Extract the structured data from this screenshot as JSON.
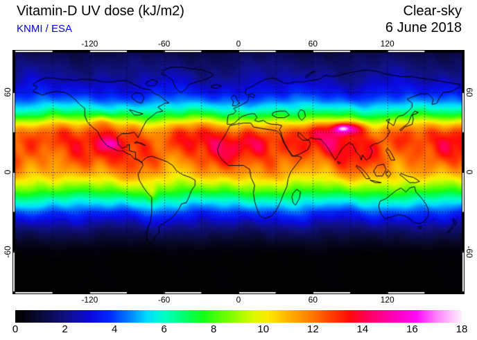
{
  "header": {
    "title": "Vitamin-D UV dose (kJ/m2)",
    "source": "KNMI / ESA",
    "source_color": "#0000ee",
    "condition": "Clear-sky",
    "date": "6 June 2018"
  },
  "chart_data": {
    "type": "heatmap",
    "projection": "equirectangular",
    "title": "Vitamin-D UV dose (kJ/m2)",
    "condition": "Clear-sky",
    "date": "6 June 2018",
    "units": "kJ/m2",
    "lon_range": [
      -180,
      180
    ],
    "lat_range": [
      -90,
      90
    ],
    "lon_ticks": [
      -120,
      -60,
      0,
      60,
      120
    ],
    "lat_ticks": [
      60,
      0,
      -60
    ],
    "grid_spacing_deg": 30,
    "grid_style": "dotted",
    "colorbar": {
      "min": 0,
      "max": 18,
      "ticks": [
        0,
        2,
        4,
        6,
        8,
        10,
        12,
        14,
        16,
        18
      ]
    },
    "palette_stops": [
      [
        0,
        "#000000"
      ],
      [
        0.8,
        "#08082a"
      ],
      [
        2,
        "#101082"
      ],
      [
        3,
        "#0a0adc"
      ],
      [
        3.8,
        "#0028ff"
      ],
      [
        4.6,
        "#0082ff"
      ],
      [
        5.3,
        "#00dcff"
      ],
      [
        6,
        "#00ffc8"
      ],
      [
        6.8,
        "#00ff6e"
      ],
      [
        7.6,
        "#14ff14"
      ],
      [
        8.6,
        "#78ff00"
      ],
      [
        9.6,
        "#dcfa00"
      ],
      [
        10.2,
        "#ffeb00"
      ],
      [
        11,
        "#ffb400"
      ],
      [
        12,
        "#ff7800"
      ],
      [
        12.8,
        "#ff3c00"
      ],
      [
        13.5,
        "#ff0a0a"
      ],
      [
        14.2,
        "#ff005a"
      ],
      [
        15.2,
        "#ff00b4"
      ],
      [
        16.2,
        "#ff0afa"
      ],
      [
        17,
        "#ff82fc"
      ],
      [
        18,
        "#fff0fe"
      ]
    ],
    "zonal_profile": {
      "lat": [
        90,
        82,
        75,
        68,
        60,
        54,
        48,
        43,
        39,
        36,
        32,
        28,
        23,
        18,
        13,
        8,
        3,
        0,
        -4,
        -8,
        -13,
        -18,
        -23,
        -28,
        -33,
        -38,
        -43,
        -48,
        -53,
        -58,
        -63,
        -68,
        -90
      ],
      "value": [
        1.2,
        1.7,
        2.1,
        2.6,
        3.4,
        4.4,
        5.8,
        7.4,
        9.2,
        10.6,
        12.0,
        12.8,
        13.2,
        13.1,
        12.8,
        12.4,
        11.8,
        11.4,
        10.6,
        9.6,
        8.3,
        6.9,
        5.6,
        4.5,
        3.5,
        2.6,
        1.8,
        1.2,
        0.7,
        0.3,
        0.1,
        0,
        0
      ]
    },
    "hotspots": [
      {
        "name": "tibetan-plateau",
        "lon": 87,
        "lat": 33,
        "sx": 12,
        "sy": 4.5,
        "amp": 4.2
      },
      {
        "name": "tibetan-plateau-core",
        "lon": 84,
        "lat": 33,
        "sx": 4,
        "sy": 1.8,
        "amp": 1.8
      },
      {
        "name": "mexican-highlands",
        "lon": -102,
        "lat": 21,
        "sx": 6,
        "sy": 3.5,
        "amp": 1.6
      },
      {
        "name": "us-rockies",
        "lon": -109,
        "lat": 38,
        "sx": 8,
        "sy": 5,
        "amp": 1.5
      },
      {
        "name": "andes",
        "lon": -70,
        "lat": -16,
        "sx": 4,
        "sy": 7,
        "amp": 1.6
      },
      {
        "name": "sahara-arabia",
        "lon": 25,
        "lat": 20,
        "sx": 35,
        "sy": 9,
        "amp": 0.7
      },
      {
        "name": "iranian-plateau",
        "lon": 55,
        "lat": 31,
        "sx": 12,
        "sy": 5,
        "amp": 1.0
      }
    ]
  }
}
